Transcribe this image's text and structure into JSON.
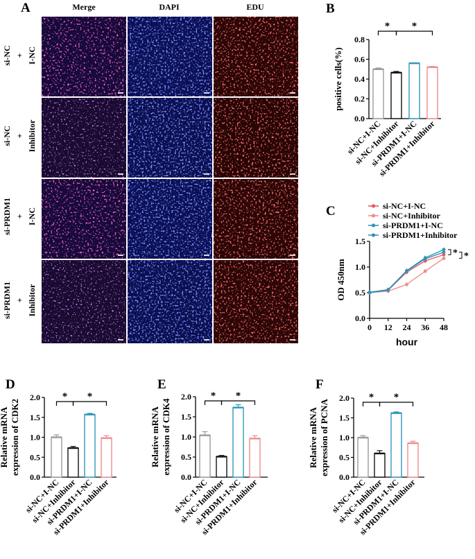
{
  "colors": {
    "gray": "#9a9a9a",
    "black": "#111111",
    "teal": "#2f97b8",
    "salmon": "#f08c8c",
    "red": "#e55a60",
    "bg": "#ffffff"
  },
  "panel_a": {
    "letter": "A",
    "columns": [
      "Merge",
      "DAPI",
      "EDU"
    ],
    "rows": [
      {
        "line1": "si-NC",
        "plus": "+",
        "line2": "I-NC"
      },
      {
        "line1": "si-NC",
        "plus": "+",
        "line2": "Inhibitor"
      },
      {
        "line1": "si-PRDM1",
        "plus": "+",
        "line2": "I-NC"
      },
      {
        "line1": "si-PRDM1",
        "plus": "+",
        "line2": "Inhibitor"
      }
    ]
  },
  "chart_data": [
    {
      "id": "B",
      "type": "bar",
      "letter": "B",
      "categories": [
        "si-NC+I-NC",
        "si-NC+Inhibitor",
        "si-PRDM1+I-NC",
        "si-PRDM1+Inhibitor"
      ],
      "values": [
        0.5,
        0.465,
        0.56,
        0.52
      ],
      "errors": [
        0.012,
        0.012,
        0.005,
        0.008
      ],
      "ylabel": "positive cells(%)",
      "ylim": [
        0,
        0.8
      ],
      "yticks": [
        0.0,
        0.2,
        0.4,
        0.6,
        0.8
      ],
      "ytick_labels": [
        "0.0",
        "0.2",
        "0.4",
        "0.6",
        "0.8"
      ],
      "significance": [
        {
          "from": 0,
          "to": 1,
          "label": "*"
        },
        {
          "from": 1,
          "to": 3,
          "label": "*"
        }
      ]
    },
    {
      "id": "C",
      "type": "line",
      "letter": "C",
      "x": [
        0,
        12,
        24,
        36,
        48
      ],
      "xticks": [
        "0",
        "12",
        "24",
        "36",
        "48"
      ],
      "xlabel": "hour",
      "ylabel": "OD 450nm",
      "ylim": [
        0,
        1.5
      ],
      "yticks": [
        0.0,
        0.5,
        1.0,
        1.5
      ],
      "ytick_labels": [
        "0.0",
        "0.5",
        "1.0",
        "1.5"
      ],
      "series": [
        {
          "name": "si-NC+I-NC",
          "values": [
            0.5,
            0.55,
            0.9,
            1.12,
            1.24
          ],
          "color": "#e55a60",
          "marker": "circle"
        },
        {
          "name": "si-NC+Inhibitor",
          "values": [
            0.5,
            0.53,
            0.66,
            0.92,
            1.17
          ],
          "color": "#f08c8c",
          "marker": "square"
        },
        {
          "name": "si-PRDM1+I-NC",
          "values": [
            0.51,
            0.56,
            0.93,
            1.18,
            1.34
          ],
          "color": "#2f97b8",
          "marker": "triangle"
        },
        {
          "name": "si-PRDM1+Inhibitor",
          "values": [
            0.5,
            0.55,
            0.92,
            1.16,
            1.29
          ],
          "color": "#3c8fb5",
          "marker": "diamond"
        }
      ],
      "significance": [
        "*",
        "*"
      ]
    },
    {
      "id": "D",
      "type": "bar",
      "letter": "D",
      "categories": [
        "si-NC+I-NC",
        "si-NC+Inhibitor",
        "si-PRDM1+I-NC",
        "si-PRDM1+Inhibitor"
      ],
      "values": [
        1.0,
        0.73,
        1.57,
        0.98
      ],
      "errors": [
        0.06,
        0.04,
        0.03,
        0.06
      ],
      "ylabel_lines": [
        "Relative mRNA",
        "expression of CDK2"
      ],
      "ylim": [
        0,
        2.0
      ],
      "yticks": [
        0.0,
        0.5,
        1.0,
        1.5,
        2.0
      ],
      "ytick_labels": [
        "0.0",
        "0.5",
        "1.0",
        "1.5",
        "2.0"
      ],
      "significance": [
        {
          "from": 0,
          "to": 1,
          "label": "*"
        },
        {
          "from": 1,
          "to": 3,
          "label": "*"
        }
      ]
    },
    {
      "id": "E",
      "type": "bar",
      "letter": "E",
      "categories": [
        "si-NC+I-NC",
        "si-NC+Inhibitor",
        "si-PRDM1+I-NC",
        "si-PRDM1+Inhibitor"
      ],
      "values": [
        1.04,
        0.51,
        1.73,
        0.96
      ],
      "errors": [
        0.09,
        0.03,
        0.07,
        0.07
      ],
      "ylabel_lines": [
        "Relative mRNA",
        "expression of CDK4"
      ],
      "ylim": [
        0,
        2.0
      ],
      "yticks": [
        0.0,
        0.5,
        1.0,
        1.5,
        2.0
      ],
      "ytick_labels": [
        "0.0",
        "0.5",
        "1.0",
        "1.5",
        "2.0"
      ],
      "significance": [
        {
          "from": 0,
          "to": 1,
          "label": "*"
        },
        {
          "from": 1,
          "to": 3,
          "label": "*"
        }
      ]
    },
    {
      "id": "F",
      "type": "bar",
      "letter": "F",
      "categories": [
        "si-NC+I-NC",
        "si-NC+Inhibitor",
        "si-PRDM1+I-NC",
        "si-PRDM1+Inhibitor"
      ],
      "values": [
        1.0,
        0.6,
        1.62,
        0.86
      ],
      "errors": [
        0.05,
        0.07,
        0.03,
        0.05
      ],
      "ylabel_lines": [
        "Relative mRNA",
        "expression of PCNA"
      ],
      "ylim": [
        0,
        2.0
      ],
      "yticks": [
        0.0,
        0.5,
        1.0,
        1.5,
        2.0
      ],
      "ytick_labels": [
        "0.0",
        "0.5",
        "1.0",
        "1.5",
        "2.0"
      ],
      "significance": [
        {
          "from": 0,
          "to": 1,
          "label": "*"
        },
        {
          "from": 1,
          "to": 3,
          "label": "*"
        }
      ]
    }
  ]
}
